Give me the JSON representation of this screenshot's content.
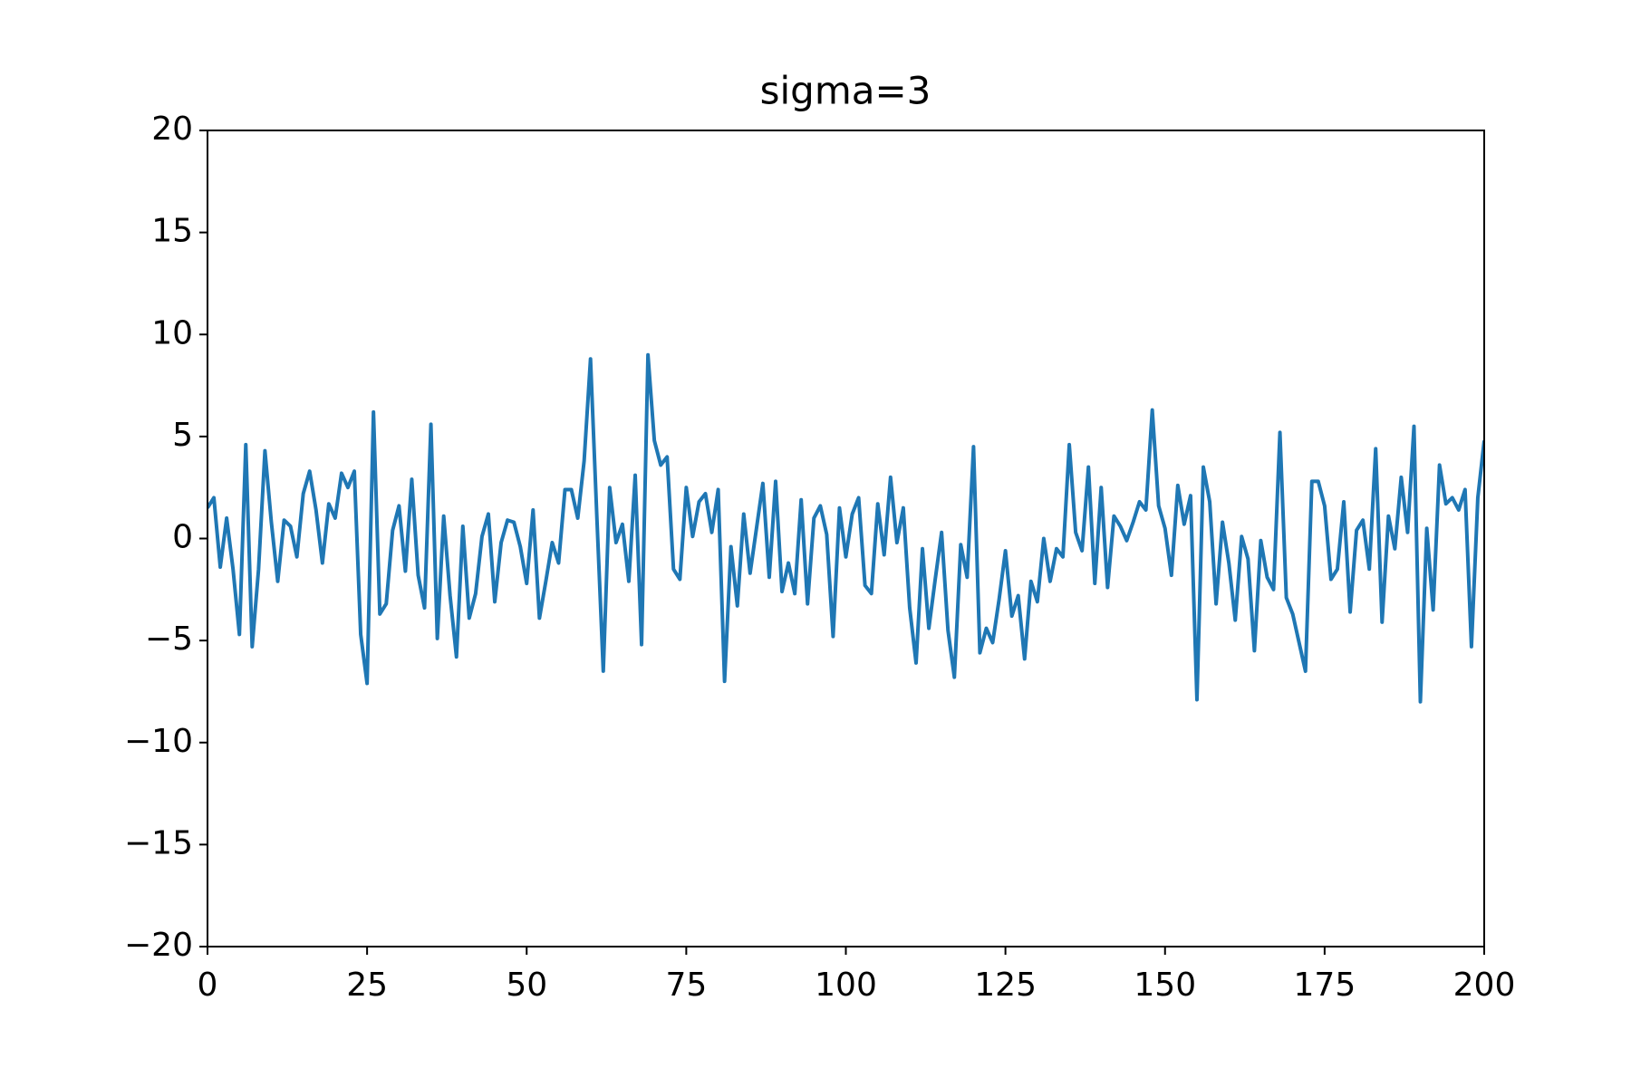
{
  "chart_data": {
    "type": "line",
    "title": "sigma=3",
    "x": [
      0,
      1,
      2,
      3,
      4,
      5,
      6,
      7,
      8,
      9,
      10,
      11,
      12,
      13,
      14,
      15,
      16,
      17,
      18,
      19,
      20,
      21,
      22,
      23,
      24,
      25,
      26,
      27,
      28,
      29,
      30,
      31,
      32,
      33,
      34,
      35,
      36,
      37,
      38,
      39,
      40,
      41,
      42,
      43,
      44,
      45,
      46,
      47,
      48,
      49,
      50,
      51,
      52,
      53,
      54,
      55,
      56,
      57,
      58,
      59,
      60,
      61,
      62,
      63,
      64,
      65,
      66,
      67,
      68,
      69,
      70,
      71,
      72,
      73,
      74,
      75,
      76,
      77,
      78,
      79,
      80,
      81,
      82,
      83,
      84,
      85,
      86,
      87,
      88,
      89,
      90,
      91,
      92,
      93,
      94,
      95,
      96,
      97,
      98,
      99,
      100,
      101,
      102,
      103,
      104,
      105,
      106,
      107,
      108,
      109,
      110,
      111,
      112,
      113,
      114,
      115,
      116,
      117,
      118,
      119,
      120,
      121,
      122,
      123,
      124,
      125,
      126,
      127,
      128,
      129,
      130,
      131,
      132,
      133,
      134,
      135,
      136,
      137,
      138,
      139,
      140,
      141,
      142,
      143,
      144,
      145,
      146,
      147,
      148,
      149,
      150,
      151,
      152,
      153,
      154,
      155,
      156,
      157,
      158,
      159,
      160,
      161,
      162,
      163,
      164,
      165,
      166,
      167,
      168,
      169,
      170,
      171,
      172,
      173,
      174,
      175,
      176,
      177,
      178,
      179,
      180,
      181,
      182,
      183,
      184,
      185,
      186,
      187,
      188,
      189,
      190,
      191,
      192,
      193,
      194,
      195,
      196,
      197,
      198,
      199,
      200
    ],
    "values": [
      1.5,
      2.0,
      -1.4,
      1.0,
      -1.5,
      -4.7,
      4.6,
      -5.3,
      -1.5,
      4.3,
      0.8,
      -2.1,
      0.9,
      0.6,
      -0.9,
      2.2,
      3.3,
      1.4,
      -1.2,
      1.7,
      1.0,
      3.2,
      2.5,
      3.3,
      -4.7,
      -7.1,
      6.2,
      -3.7,
      -3.2,
      0.4,
      1.6,
      -1.6,
      2.9,
      -1.8,
      -3.4,
      5.6,
      -4.9,
      1.1,
      -2.8,
      -5.8,
      0.6,
      -3.9,
      -2.7,
      0.1,
      1.2,
      -3.1,
      -0.2,
      0.9,
      0.8,
      -0.4,
      -2.2,
      1.4,
      -3.9,
      -2.1,
      -0.2,
      -1.2,
      2.4,
      2.4,
      1.0,
      3.8,
      8.8,
      1.0,
      -6.5,
      2.5,
      -0.2,
      0.7,
      -2.1,
      3.1,
      -5.2,
      9.0,
      4.8,
      3.6,
      4.0,
      -1.5,
      -2.0,
      2.5,
      0.1,
      1.8,
      2.2,
      0.3,
      2.4,
      -7.0,
      -0.4,
      -3.3,
      1.2,
      -1.7,
      0.5,
      2.7,
      -1.9,
      2.8,
      -2.6,
      -1.2,
      -2.7,
      1.9,
      -3.2,
      1.0,
      1.6,
      0.2,
      -4.8,
      1.5,
      -0.9,
      1.2,
      2.0,
      -2.3,
      -2.7,
      1.7,
      -0.8,
      3.0,
      -0.2,
      1.5,
      -3.4,
      -6.1,
      -0.5,
      -4.4,
      -2.0,
      0.3,
      -4.5,
      -6.8,
      -0.3,
      -1.9,
      4.5,
      -5.6,
      -4.4,
      -5.1,
      -3.0,
      -0.6,
      -3.8,
      -2.8,
      -5.9,
      -2.1,
      -3.1,
      0.0,
      -2.1,
      -0.5,
      -0.9,
      4.6,
      0.3,
      -0.6,
      3.5,
      -2.2,
      2.5,
      -2.4,
      1.1,
      0.6,
      -0.1,
      0.8,
      1.8,
      1.4,
      6.3,
      1.6,
      0.5,
      -1.8,
      2.6,
      0.7,
      2.1,
      -7.9,
      3.5,
      1.8,
      -3.2,
      0.8,
      -1.2,
      -4.0,
      0.1,
      -1.0,
      -5.5,
      -0.1,
      -1.9,
      -2.5,
      5.2,
      -2.9,
      -3.7,
      -5.1,
      -6.5,
      2.8,
      2.8,
      1.6,
      -2.0,
      -1.5,
      1.8,
      -3.6,
      0.4,
      0.9,
      -1.5,
      4.4,
      -4.1,
      1.1,
      -0.5,
      3.0,
      0.3,
      5.5,
      -8.0,
      0.5,
      -3.5,
      3.6,
      1.7,
      2.0,
      1.4,
      2.4,
      -5.3,
      2.0,
      4.8
    ],
    "color": "#1f77b4",
    "xlim": [
      0,
      200
    ],
    "xticks": [
      0,
      25,
      50,
      75,
      100,
      125,
      150,
      175,
      200
    ],
    "ylim": [
      -20,
      20
    ],
    "yticks": [
      {
        "value": -20,
        "label": "−20"
      },
      {
        "value": -15,
        "label": "−15"
      },
      {
        "value": -10,
        "label": "−10"
      },
      {
        "value": -5,
        "label": "−5"
      },
      0,
      5,
      10,
      15,
      20
    ]
  }
}
